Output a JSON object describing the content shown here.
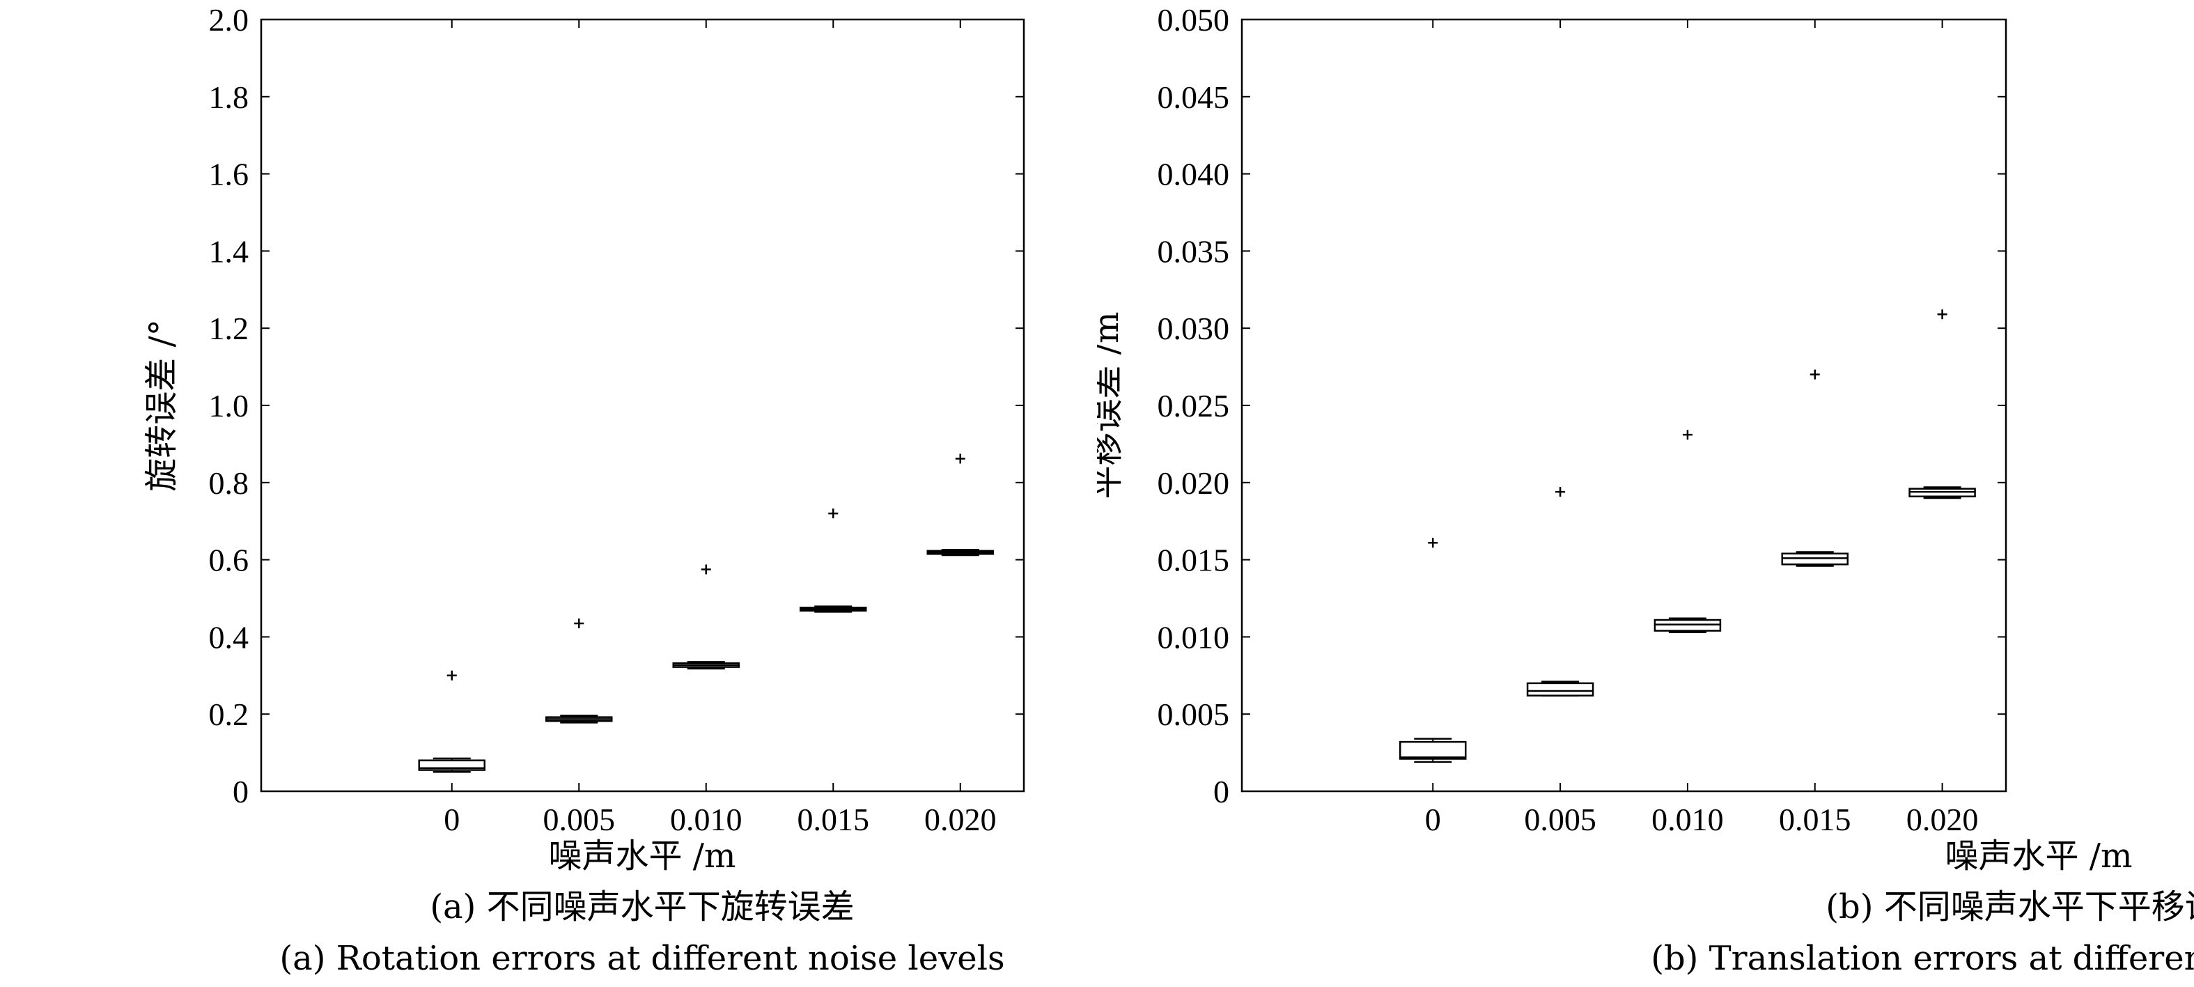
{
  "chart_data": [
    {
      "type": "box",
      "xlabel": "噪声水平 /m",
      "ylabel": "旋转误差 /°",
      "caption_cn": "(a) 不同噪声水平下旋转误差",
      "caption_en": "(a) Rotation errors at different noise levels",
      "categories": [
        "0",
        "0.005",
        "0.010",
        "0.015",
        "0.020"
      ],
      "xlim": [
        -0.5,
        5.5
      ],
      "ylim": [
        0,
        2.0
      ],
      "yticks": [
        "0",
        "0.2",
        "0.4",
        "0.6",
        "0.8",
        "1.0",
        "1.2",
        "1.4",
        "1.6",
        "1.8",
        "2.0"
      ],
      "grid": false,
      "boxes": [
        {
          "whisker_low": 0.05,
          "q1": 0.055,
          "median": 0.06,
          "q3": 0.08,
          "whisker_high": 0.085,
          "outliers": [
            0.3
          ]
        },
        {
          "whisker_low": 0.178,
          "q1": 0.182,
          "median": 0.187,
          "q3": 0.192,
          "whisker_high": 0.196,
          "outliers": [
            0.435
          ]
        },
        {
          "whisker_low": 0.318,
          "q1": 0.322,
          "median": 0.327,
          "q3": 0.332,
          "whisker_high": 0.335,
          "outliers": [
            0.575
          ]
        },
        {
          "whisker_low": 0.465,
          "q1": 0.468,
          "median": 0.472,
          "q3": 0.476,
          "whisker_high": 0.479,
          "outliers": [
            0.72
          ]
        },
        {
          "whisker_low": 0.612,
          "q1": 0.615,
          "median": 0.619,
          "q3": 0.623,
          "whisker_high": 0.626,
          "outliers": [
            0.862
          ]
        }
      ]
    },
    {
      "type": "box",
      "xlabel": "噪声水平 /m",
      "ylabel": "平移误差 /m",
      "caption_cn": "(b) 不同噪声水平下平移误差",
      "caption_en": "(b) Translation errors at different noise levels",
      "categories": [
        "0",
        "0.005",
        "0.010",
        "0.015",
        "0.020"
      ],
      "xlim": [
        -0.5,
        5.5
      ],
      "ylim": [
        0,
        0.05
      ],
      "yticks": [
        "0",
        "0.005",
        "0.010",
        "0.015",
        "0.020",
        "0.025",
        "0.030",
        "0.035",
        "0.040",
        "0.045",
        "0.050"
      ],
      "grid": false,
      "boxes": [
        {
          "whisker_low": 0.0019,
          "q1": 0.0021,
          "median": 0.0022,
          "q3": 0.0032,
          "whisker_high": 0.0034,
          "outliers": [
            0.0161
          ]
        },
        {
          "whisker_low": 0.0062,
          "q1": 0.0062,
          "median": 0.0065,
          "q3": 0.007,
          "whisker_high": 0.0071,
          "outliers": [
            0.0194
          ]
        },
        {
          "whisker_low": 0.0103,
          "q1": 0.0104,
          "median": 0.0108,
          "q3": 0.0111,
          "whisker_high": 0.0112,
          "outliers": [
            0.0231
          ]
        },
        {
          "whisker_low": 0.0146,
          "q1": 0.0147,
          "median": 0.0151,
          "q3": 0.0154,
          "whisker_high": 0.0155,
          "outliers": [
            0.027
          ]
        },
        {
          "whisker_low": 0.019,
          "q1": 0.0191,
          "median": 0.0194,
          "q3": 0.0196,
          "whisker_high": 0.0197,
          "outliers": [
            0.0309
          ]
        }
      ]
    }
  ]
}
